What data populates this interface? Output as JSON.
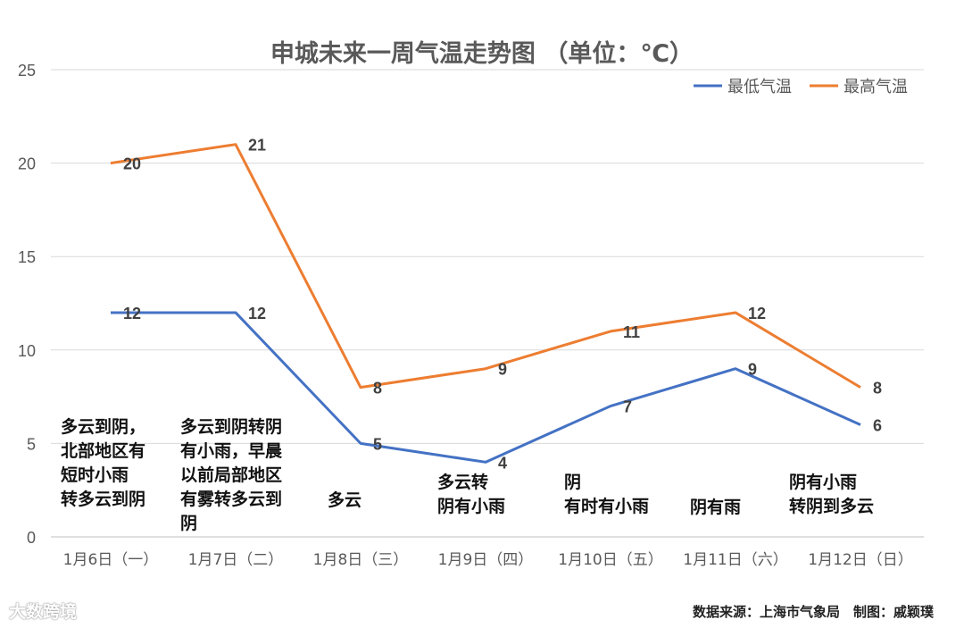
{
  "chart_data": {
    "type": "line",
    "title": "申城未来一周气温走势图 （单位：℃）",
    "categories": [
      "1月6日（一）",
      "1月7日（二）",
      "1月8日（三）",
      "1月9日（四）",
      "1月10日（五）",
      "1月11日（六）",
      "1月12日（日）"
    ],
    "series": [
      {
        "name": "最低气温",
        "color": "#4472C4",
        "values": [
          12,
          12,
          5,
          4,
          7,
          9,
          6
        ]
      },
      {
        "name": "最高气温",
        "color": "#ED7D31",
        "values": [
          20,
          21,
          8,
          9,
          11,
          12,
          8
        ]
      }
    ],
    "ylim": [
      0,
      25
    ],
    "yticks": [
      0,
      5,
      10,
      15,
      20,
      25
    ],
    "grid": true,
    "legend": "top-right",
    "annotations": [
      "多云到阴，\n北部地区有\n短时小雨\n转多云到阴",
      "多云到阴转阴\n有小雨，早晨\n以前局部地区\n有雾转多云到\n阴",
      "多云",
      "多云转\n阴有小雨",
      "阴\n有时有小雨",
      "阴有雨",
      "阴有小雨\n转阴到多云"
    ]
  },
  "footer": "数据来源：上海市气象局　制图：戚颖璞",
  "watermark": "大数跨境"
}
